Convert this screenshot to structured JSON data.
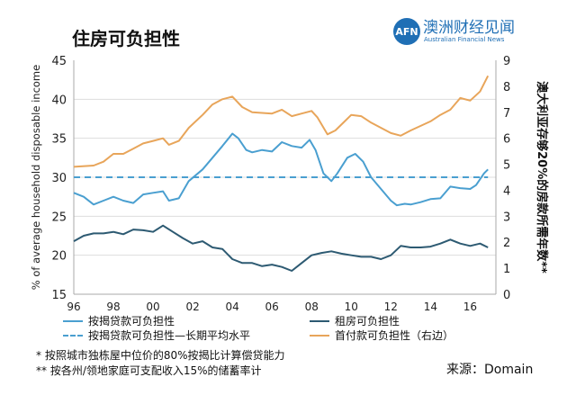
{
  "title": "住房可负担性",
  "logo": {
    "mark": "AFN",
    "name_cn": "澳洲财经见闻",
    "name_en": "Australian Financial News"
  },
  "chart_data": {
    "type": "line",
    "ylabel": "% of average household disposable income",
    "y2label": "澳大利亚存够20%的房款所需年数**",
    "ylim": [
      15,
      45
    ],
    "y2lim": [
      0,
      9
    ],
    "yticks": [
      15,
      20,
      25,
      30,
      35,
      40,
      45
    ],
    "y2ticks": [
      0,
      1,
      2,
      3,
      4,
      5,
      6,
      7,
      8,
      9
    ],
    "xlim": [
      1996,
      2017.3
    ],
    "xticks": [
      {
        "v": 1996,
        "l": "96"
      },
      {
        "v": 1998,
        "l": "98"
      },
      {
        "v": 2000,
        "l": "00"
      },
      {
        "v": 2002,
        "l": "02"
      },
      {
        "v": 2004,
        "l": "04"
      },
      {
        "v": 2006,
        "l": "06"
      },
      {
        "v": 2008,
        "l": "08"
      },
      {
        "v": 2010,
        "l": "10"
      },
      {
        "v": 2012,
        "l": "12"
      },
      {
        "v": 2014,
        "l": "14"
      },
      {
        "v": 2016,
        "l": "16"
      }
    ],
    "grid": true,
    "series": [
      {
        "name": "按揭贷款可负担性",
        "color": "#4a9fd0",
        "axis": "left",
        "style": "solid",
        "x": [
          1996,
          1996.5,
          1997,
          1997.5,
          1998,
          1998.5,
          1999,
          1999.5,
          2000,
          2000.5,
          2000.8,
          2001.3,
          2001.8,
          2002.5,
          2003,
          2003.5,
          2004,
          2004.3,
          2004.7,
          2005,
          2005.5,
          2006,
          2006.5,
          2007,
          2007.5,
          2007.9,
          2008.2,
          2008.6,
          2009,
          2009.3,
          2009.8,
          2010.2,
          2010.6,
          2011,
          2011.5,
          2012,
          2012.3,
          2012.7,
          2013,
          2013.5,
          2014,
          2014.5,
          2015,
          2015.5,
          2016,
          2016.3,
          2016.7,
          2016.9
        ],
        "y": [
          28,
          27.5,
          26.5,
          27,
          27.5,
          27,
          26.7,
          27.8,
          28,
          28.2,
          27,
          27.3,
          29.5,
          31,
          32.5,
          34,
          35.6,
          35,
          33.5,
          33.2,
          33.5,
          33.3,
          34.5,
          34,
          33.8,
          34.8,
          33.5,
          30.5,
          29.5,
          30.5,
          32.5,
          33,
          32,
          30,
          28.5,
          27,
          26.4,
          26.6,
          26.5,
          26.8,
          27.2,
          27.3,
          28.8,
          28.6,
          28.5,
          29,
          30.5,
          31
        ]
      },
      {
        "name": "按揭贷款可负担性—长期平均水平",
        "color": "#4a9fd0",
        "axis": "left",
        "style": "dashed",
        "x": [
          1996,
          2016.9
        ],
        "y": [
          30,
          30
        ]
      },
      {
        "name": "租房可负担性",
        "color": "#2d5a72",
        "axis": "left",
        "style": "solid",
        "x": [
          1996,
          1996.5,
          1997,
          1997.5,
          1998,
          1998.5,
          1999,
          1999.5,
          2000,
          2000.5,
          2001,
          2001.5,
          2002,
          2002.5,
          2003,
          2003.5,
          2004,
          2004.5,
          2005,
          2005.5,
          2006,
          2006.5,
          2007,
          2007.5,
          2008,
          2008.5,
          2009,
          2009.5,
          2010,
          2010.5,
          2011,
          2011.5,
          2012,
          2012.5,
          2013,
          2013.5,
          2014,
          2014.5,
          2015,
          2015.5,
          2016,
          2016.5,
          2016.9
        ],
        "y": [
          21.8,
          22.5,
          22.8,
          22.8,
          23,
          22.7,
          23.3,
          23.2,
          23,
          23.8,
          23,
          22.2,
          21.5,
          21.8,
          21,
          20.8,
          19.5,
          19,
          19,
          18.6,
          18.8,
          18.5,
          18,
          19,
          20,
          20.3,
          20.5,
          20.2,
          20,
          19.8,
          19.8,
          19.5,
          20,
          21.2,
          21,
          21,
          21.1,
          21.5,
          22,
          21.5,
          21.2,
          21.5,
          21
        ]
      },
      {
        "name": "首付款可负担性（右边）",
        "color": "#e8a55a",
        "axis": "right",
        "style": "solid",
        "x": [
          1996,
          1997,
          1997.5,
          1998,
          1998.5,
          1999,
          1999.5,
          2000,
          2000.5,
          2000.8,
          2001.3,
          2001.8,
          2002.5,
          2003,
          2003.5,
          2004,
          2004.5,
          2005,
          2006,
          2006.5,
          2007,
          2007.5,
          2008,
          2008.3,
          2008.8,
          2009.2,
          2010,
          2010.5,
          2011,
          2012,
          2012.5,
          2013,
          2014,
          2014.5,
          2015,
          2015.5,
          2016,
          2016.5,
          2016.9
        ],
        "y": [
          4.9,
          4.95,
          5.1,
          5.4,
          5.4,
          5.6,
          5.8,
          5.9,
          6.0,
          5.75,
          5.9,
          6.4,
          6.9,
          7.3,
          7.5,
          7.6,
          7.2,
          7.0,
          6.95,
          7.1,
          6.85,
          6.95,
          7.05,
          6.8,
          6.15,
          6.3,
          6.9,
          6.85,
          6.6,
          6.2,
          6.1,
          6.3,
          6.65,
          6.9,
          7.1,
          7.55,
          7.45,
          7.8,
          8.4
        ]
      }
    ]
  },
  "legend": [
    "按揭贷款可负担性",
    "按揭贷款可负担性—长期平均水平",
    "租房可负担性",
    "首付款可负担性（右边）"
  ],
  "notes": [
    "*   按照城市独栋屋中位价的80%按揭比计算偿贷能力",
    "** 按各州/领地家庭可支配收入15%的储蓄率计"
  ],
  "source": "来源：Domain"
}
